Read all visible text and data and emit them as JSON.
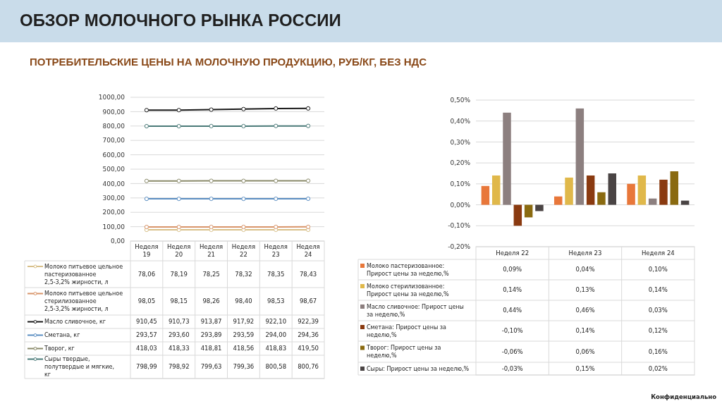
{
  "chart_data": [
    {
      "type": "line",
      "title": "ОБЗОР МОЛОЧНОГО РЫНКА РОССИИ",
      "subtitle": "ПОТРЕБИТЕЛЬСКИЕ ЦЕНЫ НА МОЛОЧНУЮ ПРОДУКЦИЮ, РУБ/КГ, БЕЗ НДС",
      "categories": [
        "Неделя 19",
        "Неделя 20",
        "Неделя 21",
        "Неделя 22",
        "Неделя 23",
        "Неделя 24"
      ],
      "ylim": [
        0,
        1000
      ],
      "yticks": [
        {
          "value": 0,
          "label": "0,00"
        },
        {
          "value": 100,
          "label": "100,00"
        },
        {
          "value": 200,
          "label": "200,00"
        },
        {
          "value": 300,
          "label": "300,00"
        },
        {
          "value": 400,
          "label": "400,00"
        },
        {
          "value": 500,
          "label": "500,00"
        },
        {
          "value": 600,
          "label": "600,00"
        },
        {
          "value": 700,
          "label": "700,00"
        },
        {
          "value": 800,
          "label": "800,00"
        },
        {
          "value": 900,
          "label": "900,00"
        },
        {
          "value": 1000,
          "label": "1000,00"
        }
      ],
      "grid": "y",
      "legend": "bottom left",
      "marker": "circle",
      "series": [
        {
          "name": "Молоко питьевое цельное пастеризованное 2,5-3,2% жирности, л",
          "color": "#d8c08a",
          "values": [
            78.06,
            78.19,
            78.25,
            78.32,
            78.35,
            78.43
          ],
          "value_labels": [
            "78,06",
            "78,19",
            "78,25",
            "78,32",
            "78,35",
            "78,43"
          ]
        },
        {
          "name": "Молоко питьевое цельное стерилизованное 2,5-3,2% жирности, л",
          "color": "#d9956a",
          "values": [
            98.05,
            98.15,
            98.26,
            98.4,
            98.53,
            98.67
          ],
          "value_labels": [
            "98,05",
            "98,15",
            "98,26",
            "98,40",
            "98,53",
            "98,67"
          ]
        },
        {
          "name": "Масло сливочное, кг",
          "color": "#1a1a1a",
          "values": [
            910.45,
            910.73,
            913.87,
            917.92,
            922.1,
            922.39
          ],
          "value_labels": [
            "910,45",
            "910,73",
            "913,87",
            "917,92",
            "922,10",
            "922,39"
          ]
        },
        {
          "name": "Сметана, кг",
          "color": "#5b8ec2",
          "values": [
            293.57,
            293.6,
            293.89,
            293.59,
            294,
            294.36
          ],
          "value_labels": [
            "293,57",
            "293,60",
            "293,89",
            "293,59",
            "294,00",
            "294,36"
          ]
        },
        {
          "name": "Творог, кг",
          "color": "#8a8a6a",
          "values": [
            418.03,
            418.33,
            418.81,
            418.56,
            418.83,
            419.5
          ],
          "value_labels": [
            "418,03",
            "418,33",
            "418,81",
            "418,56",
            "418,83",
            "419,50"
          ]
        },
        {
          "name": "Сыры твердые, полутвердые и мягкие, кг",
          "color": "#4a7a78",
          "values": [
            798.99,
            798.92,
            799.63,
            799.36,
            800.58,
            800.76
          ],
          "value_labels": [
            "798,99",
            "798,92",
            "799,63",
            "799,36",
            "800,58",
            "800,76"
          ]
        }
      ]
    },
    {
      "type": "bar",
      "categories": [
        "Неделя 22",
        "Неделя 23",
        "Неделя 24"
      ],
      "ylim": [
        -0.2,
        0.5
      ],
      "yticks": [
        {
          "value": -0.2,
          "label": "-0,20%"
        },
        {
          "value": -0.1,
          "label": "-0,10%"
        },
        {
          "value": 0,
          "label": "0,00%"
        },
        {
          "value": 0.1,
          "label": "0,10%"
        },
        {
          "value": 0.2,
          "label": "0,20%"
        },
        {
          "value": 0.3,
          "label": "0,30%"
        },
        {
          "value": 0.4,
          "label": "0,40%"
        },
        {
          "value": 0.5,
          "label": "0,50%"
        }
      ],
      "grid": "y",
      "legend": "bottom left",
      "annotations": [
        "Конфиденциально"
      ],
      "series": [
        {
          "name": "Молоко пастеризованное: Прирост цены за неделю,%",
          "color": "#e8773a",
          "values": [
            0.09,
            0.04,
            0.1
          ],
          "value_labels": [
            "0,09%",
            "0,04%",
            "0,10%"
          ]
        },
        {
          "name": "Молоко стерилизованное: Прирост цены за неделю,%",
          "color": "#e0b84a",
          "values": [
            0.14,
            0.13,
            0.14
          ],
          "value_labels": [
            "0,14%",
            "0,13%",
            "0,14%"
          ]
        },
        {
          "name": "Масло сливочное: Прирост цены за неделю,%",
          "color": "#8c7f7f",
          "values": [
            0.44,
            0.46,
            0.03
          ],
          "value_labels": [
            "0,44%",
            "0,46%",
            "0,03%"
          ]
        },
        {
          "name": "Сметана: Прирост цены за неделю,%",
          "color": "#8a3a10",
          "values": [
            -0.1,
            0.14,
            0.12
          ],
          "value_labels": [
            "-0,10%",
            "0,14%",
            "0,12%"
          ]
        },
        {
          "name": "Творог: Прирост цены за неделю,%",
          "color": "#8a6a10",
          "values": [
            -0.06,
            0.06,
            0.16
          ],
          "value_labels": [
            "-0,06%",
            "0,06%",
            "0,16%"
          ]
        },
        {
          "name": "Сыры: Прирост цены за неделю,%",
          "color": "#4a4444",
          "values": [
            -0.03,
            0.15,
            0.02
          ],
          "value_labels": [
            "-0,03%",
            "0,15%",
            "0,02%"
          ]
        }
      ]
    }
  ]
}
